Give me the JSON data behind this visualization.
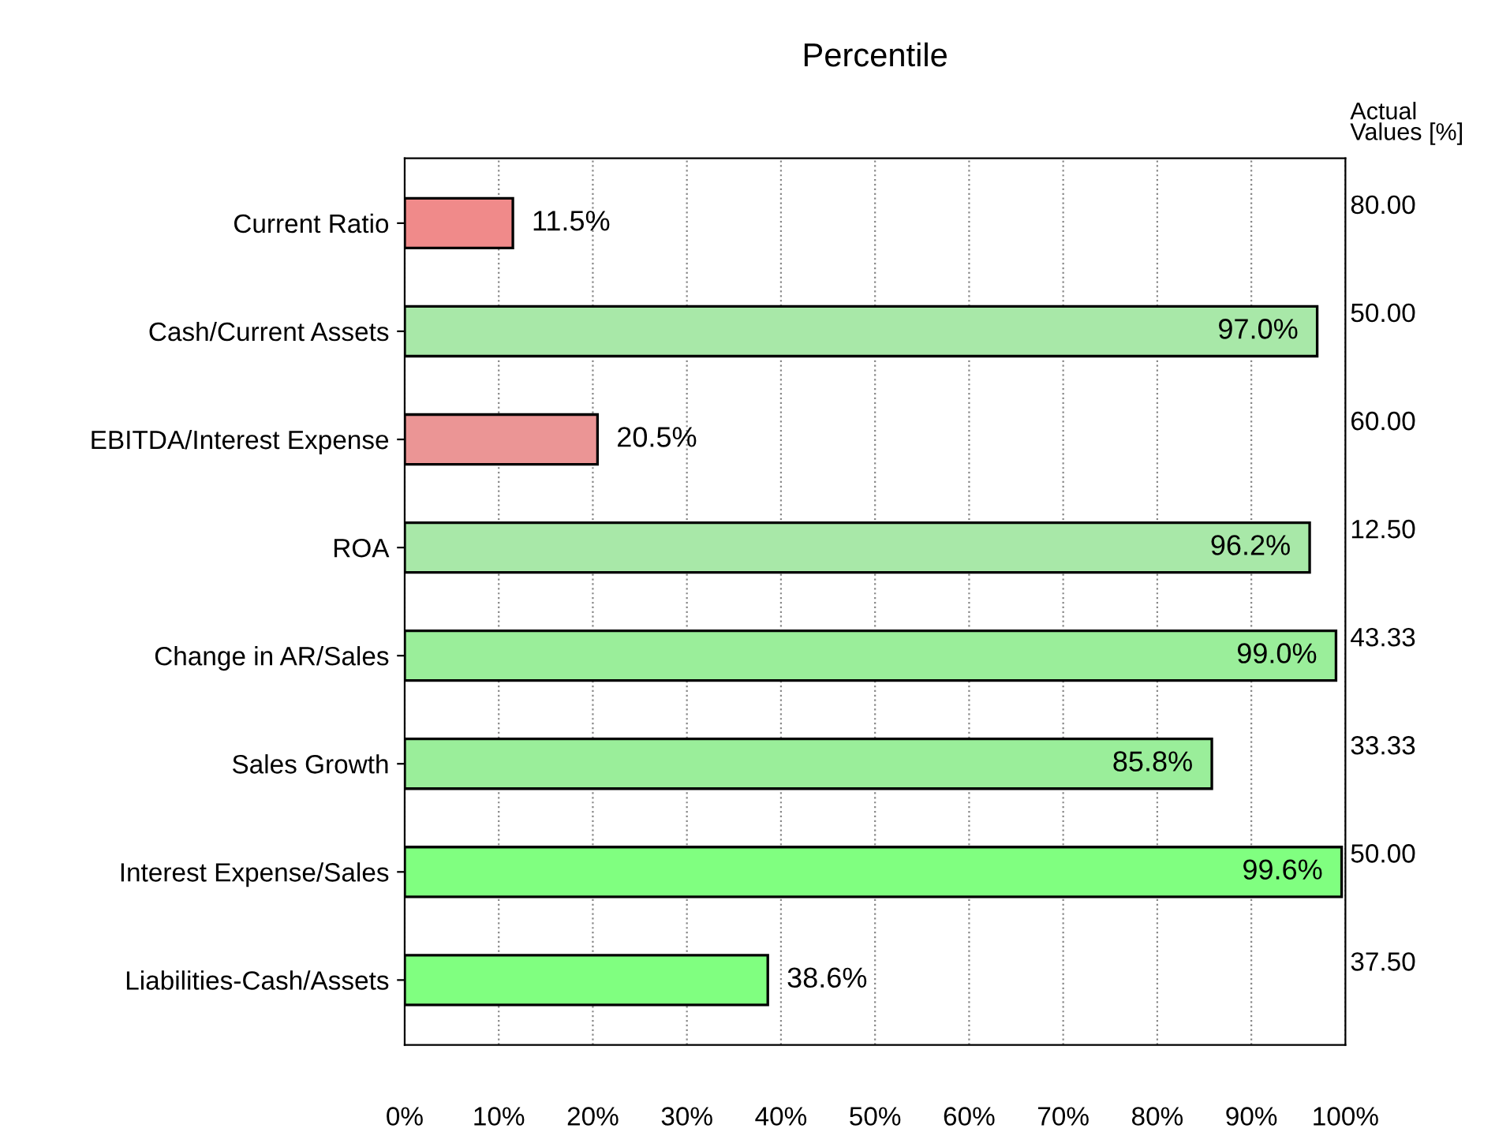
{
  "chart_data": {
    "type": "bar",
    "orientation": "horizontal",
    "title": "Percentile",
    "categories": [
      "Current Ratio",
      "Cash/Current Assets",
      "EBITDA/Interest Expense",
      "ROA",
      "Change in AR/Sales",
      "Sales Growth",
      "Interest Expense/Sales",
      "Liabilities-Cash/Assets"
    ],
    "values": [
      11.5,
      97.0,
      20.5,
      96.2,
      99.0,
      85.8,
      99.6,
      38.6
    ],
    "colors": [
      "#f08a8a",
      "#a8e8a8",
      "#eb9595",
      "#a8e8a8",
      "#9aee9a",
      "#9aee9a",
      "#80ff80",
      "#80ff80"
    ],
    "value_labels": [
      "11.5%",
      "97.0%",
      "20.5%",
      "96.2%",
      "99.0%",
      "85.8%",
      "99.6%",
      "38.6%"
    ],
    "xlim": [
      0,
      100
    ],
    "xticks": [
      {
        "value": 0,
        "label": "0%"
      },
      {
        "value": 10,
        "label": "10%"
      },
      {
        "value": 20,
        "label": "20%"
      },
      {
        "value": 30,
        "label": "30%"
      },
      {
        "value": 40,
        "label": "40%"
      },
      {
        "value": 50,
        "label": "50%"
      },
      {
        "value": 60,
        "label": "60%"
      },
      {
        "value": 70,
        "label": "70%"
      },
      {
        "value": 80,
        "label": "80%"
      },
      {
        "value": 90,
        "label": "90%"
      },
      {
        "value": 100,
        "label": "100%"
      }
    ],
    "grid": "x",
    "annotations": [
      "Actual\nValues [%]",
      "80.00",
      "50.00",
      "60.00",
      "12.50",
      "43.33",
      "33.33",
      "50.00",
      "37.50"
    ]
  }
}
